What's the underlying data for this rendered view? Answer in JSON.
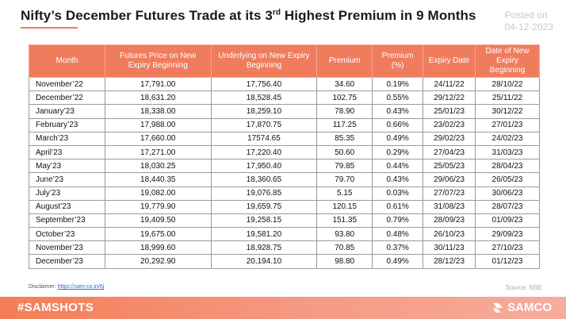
{
  "header": {
    "title_pre": "Nifty’s December Futures Trade at its 3",
    "title_sup": "rd",
    "title_post": " Highest Premium in 9 Months",
    "posted_label": "Posted on",
    "posted_date": "04-12-2023"
  },
  "table": {
    "headers": [
      "Month",
      "Futures Price on New Expiry Beginning",
      "Underlying on New Expiry Beginning",
      "Premium",
      "Premium (%)",
      "Expiry Date",
      "Date of New Expiry Beginning"
    ],
    "rows": [
      [
        "November’22",
        "17,791.00",
        "17,756.40",
        "34.60",
        "0.19%",
        "24/11/22",
        "28/10/22"
      ],
      [
        "December’22",
        "18,631.20",
        "18,528.45",
        "102.75",
        "0.55%",
        "29/12/22",
        "25/11/22"
      ],
      [
        "January’23",
        "18,338.00",
        "18,259.10",
        "78.90",
        "0.43%",
        "25/01/23",
        "30/12/22"
      ],
      [
        "February’23",
        "17,988.00",
        "17,870.75",
        "117.25",
        "0.66%",
        "23/02/23",
        "27/01/23"
      ],
      [
        "March’23",
        "17,660.00",
        "17574.65",
        "85.35",
        "0.49%",
        "29/02/23",
        "24/02/23"
      ],
      [
        "April’23",
        "17,271.00",
        "17,220.40",
        "50.60",
        "0.29%",
        "27/04/23",
        "31/03/23"
      ],
      [
        "May’23",
        "18,030.25",
        "17,950.40",
        "79.85",
        "0.44%",
        "25/05/23",
        "28/04/23"
      ],
      [
        "June’23",
        "18,440.35",
        "18,360.65",
        "79.70",
        "0.43%",
        "29/06/23",
        "26/05/23"
      ],
      [
        "July’23",
        "19,082.00",
        "19,076.85",
        "5.15",
        "0.03%",
        "27/07/23",
        "30/06/23"
      ],
      [
        "August’23",
        "19,779.90",
        "19,659.75",
        "120.15",
        "0.61%",
        "31/08/23",
        "28/07/23"
      ],
      [
        "September’23",
        "19,409.50",
        "19,258.15",
        "151.35",
        "0.79%",
        "28/09/23",
        "01/09/23"
      ],
      [
        "October’23",
        "19,675.00",
        "19,581.20",
        "93.80",
        "0.48%",
        "26/10/23",
        "29/09/23"
      ],
      [
        "November’23",
        "18,999.60",
        "18,928.75",
        "70.85",
        "0.37%",
        "30/11/23",
        "27/10/23"
      ],
      [
        "December’23",
        "20,292.90",
        "20,194.10",
        "98.80",
        "0.49%",
        "28/12/23",
        "01/12/23"
      ]
    ]
  },
  "footer": {
    "disclaimer_label": "Disclaimer: ",
    "disclaimer_link": "https://sam-co.in/6j",
    "source": "Source:  NSE",
    "hashtag": "#SAMSHOTS",
    "brand": "SAMCO",
    "brand_icon": "samco-logo-icon"
  },
  "colors": {
    "accent": "#f07c5e",
    "footer_start": "#f47e55",
    "footer_end": "#f6ad9c"
  }
}
